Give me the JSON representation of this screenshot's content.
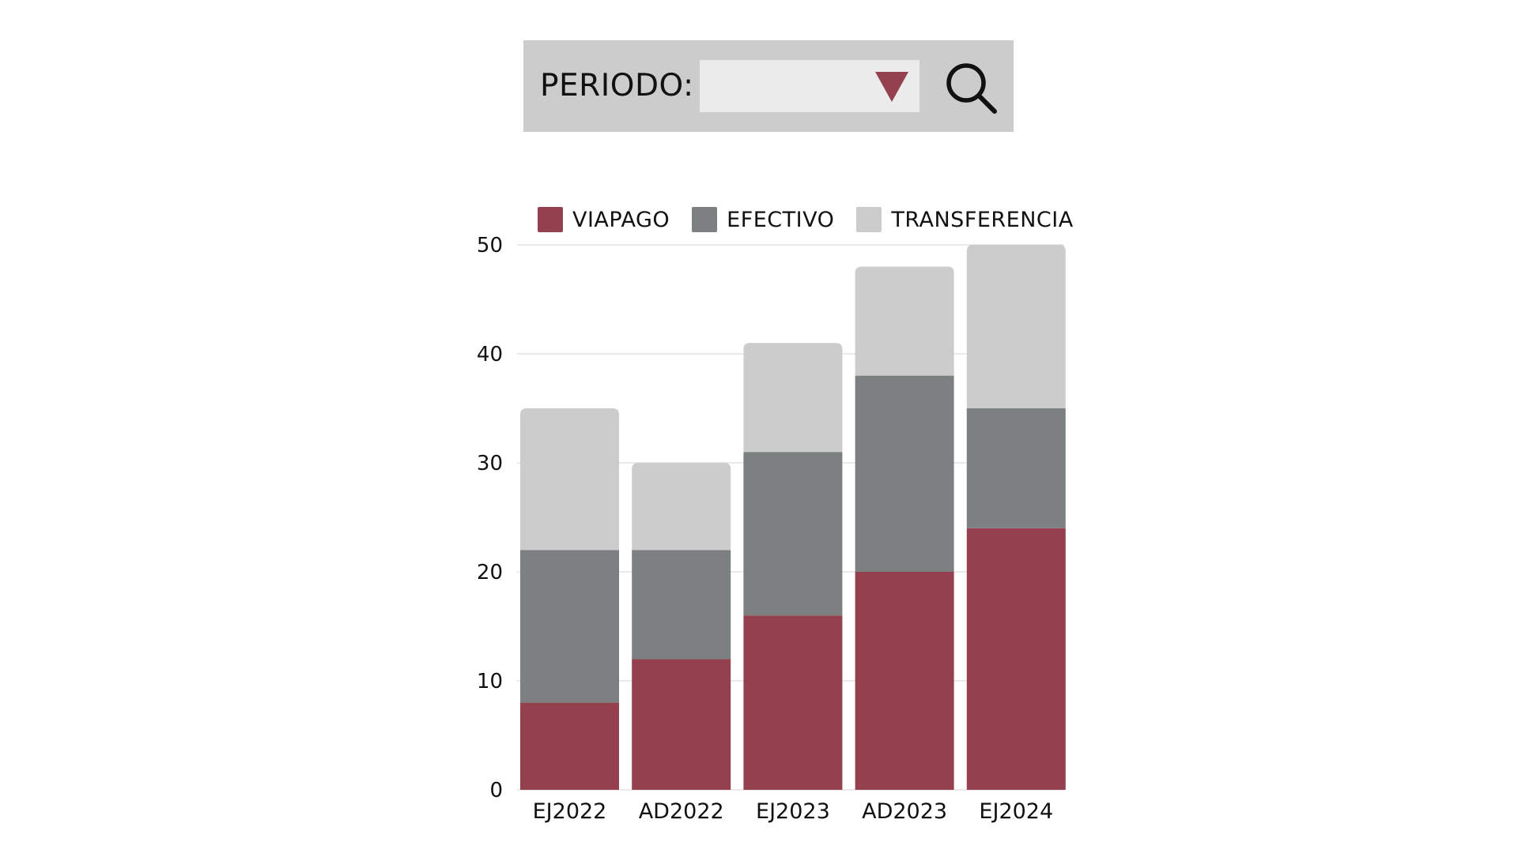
{
  "filter": {
    "label": "PERIODO:",
    "selected_value": "",
    "arrow_color": "#94404e"
  },
  "chart_data": {
    "type": "bar",
    "stacked": true,
    "categories": [
      "EJ2022",
      "AD2022",
      "EJ2023",
      "AD2023",
      "EJ2024"
    ],
    "series": [
      {
        "name": "VIAPAGO",
        "values": [
          8,
          12,
          16,
          20,
          24
        ],
        "color": "#94404e"
      },
      {
        "name": "EFECTIVO",
        "values": [
          14,
          10,
          15,
          18,
          11
        ],
        "color": "#7c8080"
      },
      {
        "name": "TRANSFERENCIA",
        "values": [
          13,
          8,
          10,
          10,
          15
        ],
        "color": "#cccccd"
      }
    ],
    "ylim": [
      0,
      50
    ],
    "yticks": [
      0,
      10,
      20,
      30,
      40,
      50
    ],
    "grid": true,
    "legend_position": "top"
  }
}
